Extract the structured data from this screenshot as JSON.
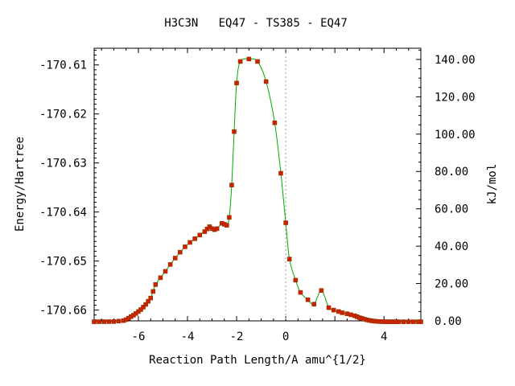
{
  "chart_data": {
    "type": "scatter",
    "title": "H3C3N   EQ47 - TS385 - EQ47",
    "xlabel": "Reaction Path Length/A amu^{1/2}",
    "ylabel": "Energy/Hartree",
    "y2label": "kJ/mol",
    "xlim": [
      -7.8,
      5.5
    ],
    "ylim": [
      -170.6622,
      -170.6066
    ],
    "y2lim": [
      0.0,
      146.0
    ],
    "x_ticks": [
      -6,
      -4,
      -2,
      0,
      4
    ],
    "x_tick_labels": [
      "-6",
      "-4",
      "-2",
      "0",
      "4"
    ],
    "y_ticks": [
      -170.61,
      -170.62,
      -170.63,
      -170.64,
      -170.65,
      -170.66
    ],
    "y_tick_labels": [
      "-170.61",
      "-170.62",
      "-170.63",
      "-170.64",
      "-170.65",
      "-170.66"
    ],
    "y2_ticks": [
      140,
      120,
      100,
      80,
      60,
      40,
      20,
      0
    ],
    "y2_tick_labels": [
      "140.00",
      "120.00",
      "100.00",
      "80.00",
      "60.00",
      "40.00",
      "20.00",
      "0.00"
    ],
    "ts_marker_x": 0.0,
    "colors": {
      "points": "#cc2200",
      "curve": "#00aa00",
      "ts_line": "#999999"
    },
    "series": [
      {
        "x": [
          -7.8,
          -7.6,
          -7.4,
          -7.2,
          -7.0,
          -6.8,
          -6.6,
          -6.5,
          -6.4,
          -6.3,
          -6.2,
          -6.1,
          -6.0,
          -5.9,
          -5.8,
          -5.7,
          -5.6,
          -5.5,
          -5.4,
          -5.3,
          -5.1,
          -4.9,
          -4.7,
          -4.5,
          -4.3,
          -4.1,
          -3.9,
          -3.7,
          -3.5,
          -3.3,
          -3.2,
          -3.1,
          -3.0,
          -2.9,
          -2.8,
          -2.6,
          -2.5,
          -2.4,
          -2.3,
          -2.2,
          -2.1,
          -2.0,
          -1.85,
          -1.5,
          -1.15,
          -0.8,
          -0.45,
          -0.2,
          0.0,
          0.15,
          0.4,
          0.6,
          0.9,
          1.15,
          1.45,
          1.75,
          1.95,
          2.15,
          2.3,
          2.5,
          2.65,
          2.8,
          2.9,
          3.0,
          3.1,
          3.2,
          3.3,
          3.4,
          3.5,
          3.6,
          3.7,
          3.8,
          3.9,
          4.0,
          4.1,
          4.2,
          4.3,
          4.4,
          4.5,
          4.6,
          4.8,
          5.0,
          5.2,
          5.4,
          5.5
        ],
        "y": [
          -170.66238,
          -170.66237,
          -170.66237,
          -170.66236,
          -170.66234,
          -170.66225,
          -170.66215,
          -170.66195,
          -170.66165,
          -170.66135,
          -170.66105,
          -170.6607,
          -170.6603,
          -170.6599,
          -170.6594,
          -170.65885,
          -170.6582,
          -170.65755,
          -170.6562,
          -170.6548,
          -170.6534,
          -170.6521,
          -170.6507,
          -170.6494,
          -170.6482,
          -170.6471,
          -170.6462,
          -170.64545,
          -170.6447,
          -170.644,
          -170.64345,
          -170.643,
          -170.6434,
          -170.6436,
          -170.6434,
          -170.6423,
          -170.6425,
          -170.6427,
          -170.6411,
          -170.6345,
          -170.6236,
          -170.6137,
          -170.6093,
          -170.6088,
          -170.6093,
          -170.6134,
          -170.6218,
          -170.6321,
          -170.6422,
          -170.6496,
          -170.6539,
          -170.6564,
          -170.6579,
          -170.6588,
          -170.656,
          -170.6595,
          -170.66,
          -170.6603,
          -170.66055,
          -170.66075,
          -170.66095,
          -170.66115,
          -170.66135,
          -170.66155,
          -170.6617,
          -170.66185,
          -170.662,
          -170.6621,
          -170.6622,
          -170.66226,
          -170.6623,
          -170.66233,
          -170.66236,
          -170.66237,
          -170.66238,
          -170.66238,
          -170.66238,
          -170.66238,
          -170.66238,
          -170.66238,
          -170.66238,
          -170.66238,
          -170.66238,
          -170.66238,
          -170.66238
        ]
      }
    ]
  }
}
